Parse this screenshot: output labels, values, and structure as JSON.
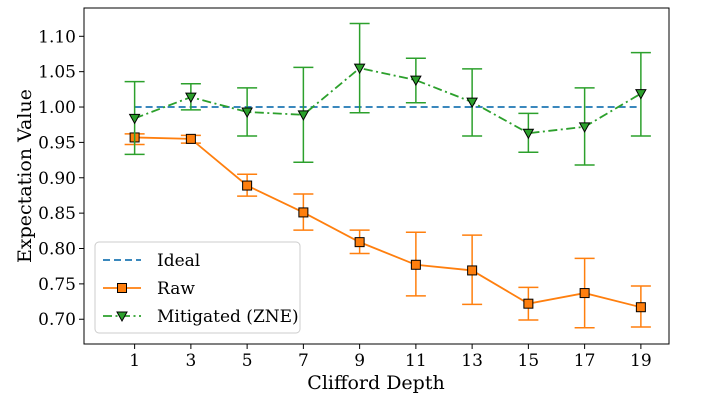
{
  "chart_data": {
    "type": "line",
    "title": "",
    "xlabel": "Clifford Depth",
    "ylabel": "Expectation Value",
    "x": [
      1,
      3,
      5,
      7,
      9,
      11,
      13,
      15,
      17,
      19
    ],
    "xlim": [
      -0.8,
      20.0
    ],
    "ylim": [
      0.665,
      1.14
    ],
    "x_ticks": [
      1,
      3,
      5,
      7,
      9,
      11,
      13,
      15,
      17,
      19
    ],
    "x_tick_labels": [
      "1",
      "3",
      "5",
      "7",
      "9",
      "11",
      "13",
      "15",
      "17",
      "19"
    ],
    "y_ticks": [
      0.7,
      0.75,
      0.8,
      0.85,
      0.9,
      0.95,
      1.0,
      1.05,
      1.1
    ],
    "y_tick_labels": [
      "0.70",
      "0.75",
      "0.80",
      "0.85",
      "0.90",
      "0.95",
      "1.00",
      "1.05",
      "1.10"
    ],
    "grid": false,
    "legend_position": "lower-left",
    "series": [
      {
        "name": "Ideal",
        "style": "dashed",
        "color": "#1f77b4",
        "x": [
          1,
          19
        ],
        "values": [
          1.0,
          1.0
        ]
      },
      {
        "name": "Raw",
        "style": "solid",
        "marker": "square",
        "color": "#ff7f0e",
        "values": [
          0.957,
          0.955,
          0.889,
          0.851,
          0.809,
          0.777,
          0.769,
          0.722,
          0.737,
          0.717
        ],
        "err_low": [
          0.947,
          0.949,
          0.874,
          0.826,
          0.793,
          0.733,
          0.721,
          0.699,
          0.688,
          0.689
        ],
        "err_high": [
          0.962,
          0.96,
          0.905,
          0.877,
          0.826,
          0.823,
          0.819,
          0.745,
          0.786,
          0.747
        ]
      },
      {
        "name": "Mitigated (ZNE)",
        "style": "dashdot",
        "marker": "triangle-down",
        "color": "#2ca02c",
        "values": [
          0.984,
          1.014,
          0.993,
          0.989,
          1.055,
          1.038,
          1.007,
          0.963,
          0.972,
          1.019
        ],
        "err_low": [
          0.933,
          0.996,
          0.959,
          0.922,
          0.992,
          1.006,
          0.959,
          0.936,
          0.918,
          0.959
        ],
        "err_high": [
          1.036,
          1.033,
          1.027,
          1.056,
          1.118,
          1.069,
          1.054,
          0.991,
          1.027,
          1.077
        ]
      }
    ]
  }
}
